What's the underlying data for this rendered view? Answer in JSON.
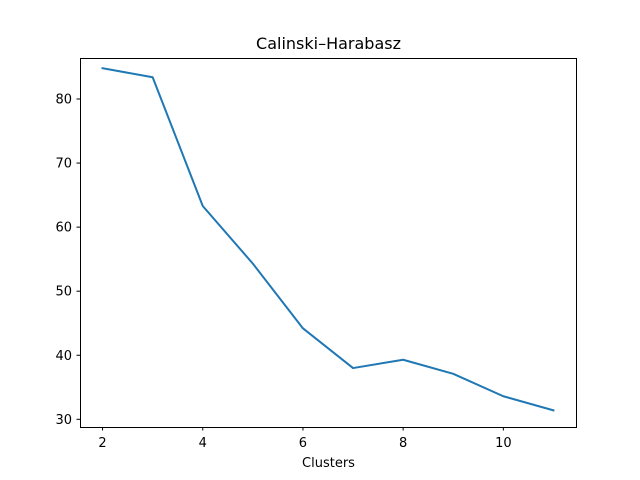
{
  "chart_data": {
    "type": "line",
    "title": "Calinski–Harabasz",
    "xlabel": "Clusters",
    "ylabel": "",
    "xlim": [
      1.55,
      11.45
    ],
    "ylim": [
      28.8,
      86.4
    ],
    "xticks": [
      2,
      4,
      6,
      8,
      10
    ],
    "yticks": [
      30,
      40,
      50,
      60,
      70,
      80
    ],
    "grid": false,
    "line_color": "#1f77b4",
    "series": [
      {
        "x": [
          2,
          3,
          4,
          5,
          6,
          7,
          8,
          9,
          10,
          11
        ],
        "y": [
          84.8,
          83.4,
          63.3,
          54.3,
          44.2,
          38.0,
          39.3,
          37.1,
          33.6,
          31.4
        ]
      }
    ]
  }
}
